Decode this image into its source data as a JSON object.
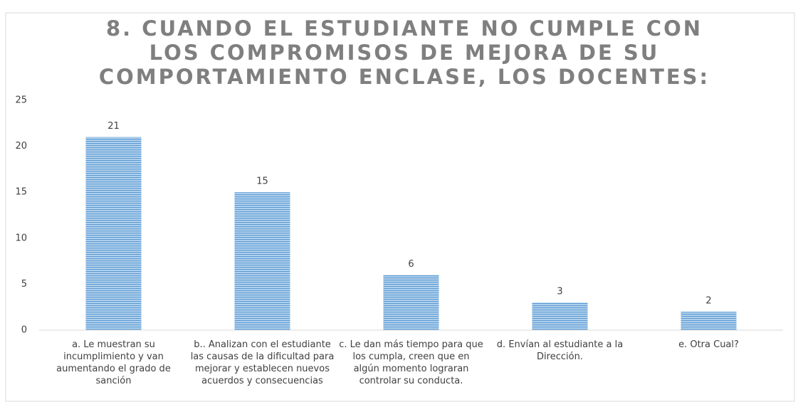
{
  "chart_data": {
    "type": "bar",
    "title": "8. CUANDO EL ESTUDIANTE NO CUMPLE CON LOS COMPROMISOS DE MEJORA DE SU COMPORTAMIENTO ENCLASE, LOS DOCENTES:",
    "categories": [
      "a. Le muestran su incumplimiento y van aumentando el grado de sanción",
      "b.. Analizan con el estudiante las causas de la dificultad para mejorar y establecen nuevos acuerdos y consecuencias",
      "c. Le dan más tiempo para que los cumpla, creen que en algún momento lograran controlar su conducta.",
      "d. Envían al estudiante a la Dirección.",
      "e. Otra Cual?"
    ],
    "values": [
      21,
      15,
      6,
      3,
      2
    ],
    "color": "#5b9bd5",
    "ylim": [
      0,
      25
    ],
    "yticks": [
      0,
      5,
      10,
      15,
      20,
      25
    ],
    "grid": false,
    "data_labels": true
  }
}
